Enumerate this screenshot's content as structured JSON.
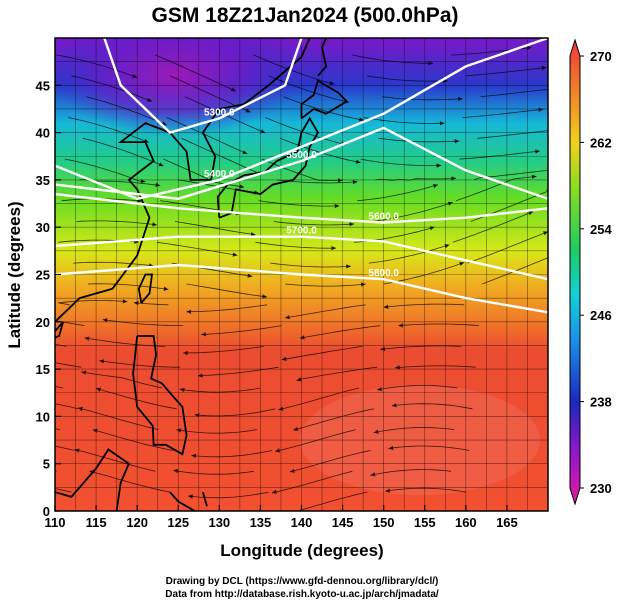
{
  "chart_data": {
    "type": "heatmap",
    "title": "GSM 18Z21Jan2024 (500.0hPa)",
    "xlabel": "Longitude (degrees)",
    "ylabel": "Latitude  (degrees)",
    "xlim": [
      110,
      170
    ],
    "ylim": [
      0,
      50
    ],
    "x_ticks": [
      110,
      115,
      120,
      125,
      130,
      135,
      140,
      145,
      150,
      155,
      160,
      165
    ],
    "y_ticks": [
      0,
      5,
      10,
      15,
      20,
      25,
      30,
      35,
      40,
      45
    ],
    "grid": true,
    "colorbar": {
      "placement": "right",
      "range": [
        230,
        270
      ],
      "ticks": [
        230,
        238,
        246,
        254,
        262,
        270
      ]
    },
    "contours": [
      {
        "label": "5400.0",
        "lat_profile": [
          [
            110,
            36.5
          ],
          [
            120,
            33.0
          ],
          [
            130,
            35.0
          ],
          [
            140,
            38.5
          ],
          [
            150,
            42.0
          ],
          [
            160,
            47.0
          ],
          [
            170,
            50.0
          ]
        ]
      },
      {
        "label": "5300.0",
        "lat_profile": [
          [
            116,
            50.0
          ],
          [
            118,
            45.0
          ],
          [
            124,
            40.0
          ],
          [
            130,
            41.5
          ],
          [
            138,
            45.0
          ],
          [
            140,
            50.0
          ]
        ]
      },
      {
        "label": "5500.0",
        "lat_profile": [
          [
            110,
            34.5
          ],
          [
            125,
            33.0
          ],
          [
            140,
            37.0
          ],
          [
            150,
            40.5
          ],
          [
            160,
            36.0
          ],
          [
            170,
            33.0
          ]
        ]
      },
      {
        "label": "5600.0",
        "lat_profile": [
          [
            110,
            33.5
          ],
          [
            125,
            32.0
          ],
          [
            140,
            31.0
          ],
          [
            150,
            30.5
          ],
          [
            160,
            31.0
          ],
          [
            170,
            32.0
          ]
        ]
      },
      {
        "label": "5700.0",
        "lat_profile": [
          [
            110,
            28.0
          ],
          [
            125,
            29.0
          ],
          [
            140,
            29.0
          ],
          [
            150,
            28.5
          ],
          [
            160,
            26.5
          ],
          [
            170,
            24.5
          ]
        ]
      },
      {
        "label": "5800.0",
        "lat_profile": [
          [
            110,
            25.0
          ],
          [
            125,
            26.0
          ],
          [
            140,
            25.0
          ],
          [
            150,
            24.5
          ],
          [
            160,
            22.5
          ],
          [
            170,
            21.0
          ]
        ]
      }
    ],
    "map_labels": [
      "5400.0",
      "5300.0",
      "5500.0",
      "5600.0",
      "5700.0",
      "5800.0"
    ]
  },
  "credits": {
    "line1": "Drawing by DCL (https://www.gfd-dennou.org/library/dcl/)",
    "line2": "Data from http://database.rish.kyoto-u.ac.jp/arch/jmadata/"
  }
}
